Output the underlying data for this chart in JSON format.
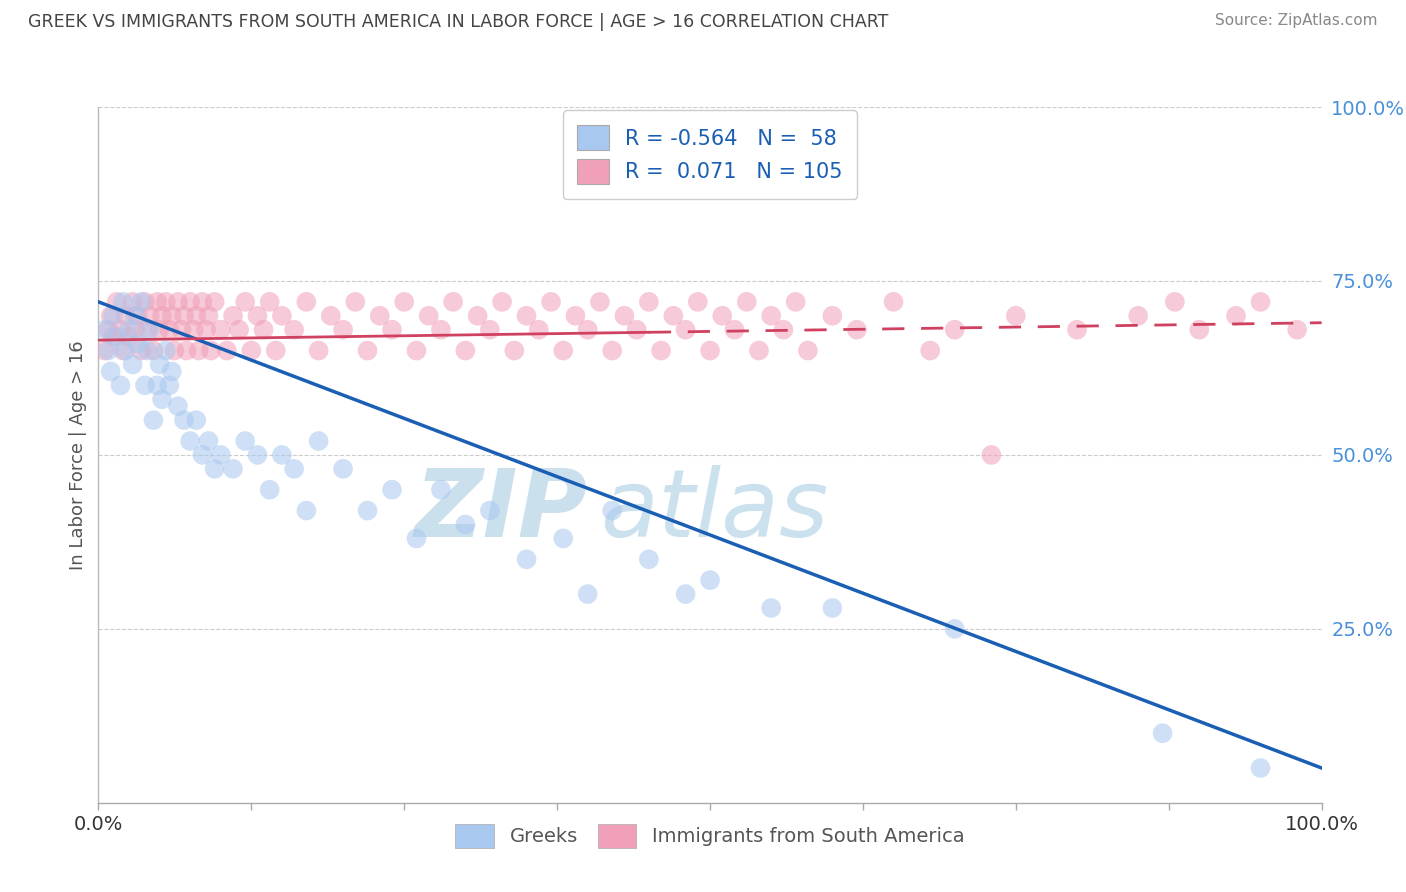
{
  "title": "GREEK VS IMMIGRANTS FROM SOUTH AMERICA IN LABOR FORCE | AGE > 16 CORRELATION CHART",
  "source": "Source: ZipAtlas.com",
  "ylabel": "In Labor Force | Age > 16",
  "watermark_zip": "ZIP",
  "watermark_atlas": "atlas",
  "legend_label_blue": "Greeks",
  "legend_label_pink": "Immigrants from South America",
  "R_blue": -0.564,
  "N_blue": 58,
  "R_pink": 0.071,
  "N_pink": 105,
  "blue_color": "#A8C8F0",
  "pink_color": "#F0A0B8",
  "blue_line_color": "#1A5FB4",
  "pink_line_color": "#D04060",
  "background_color": "#FFFFFF",
  "grid_color": "#DDDDDD",
  "title_color": "#444444",
  "right_axis_color": "#4A90D9",
  "xlim": [
    0.0,
    1.0
  ],
  "ylim": [
    0.0,
    1.0
  ],
  "blue_x": [
    0.005,
    0.008,
    0.01,
    0.012,
    0.015,
    0.018,
    0.02,
    0.022,
    0.025,
    0.028,
    0.03,
    0.032,
    0.035,
    0.038,
    0.04,
    0.042,
    0.045,
    0.048,
    0.05,
    0.052,
    0.055,
    0.058,
    0.06,
    0.065,
    0.07,
    0.075,
    0.08,
    0.085,
    0.09,
    0.095,
    0.1,
    0.11,
    0.12,
    0.13,
    0.14,
    0.15,
    0.16,
    0.17,
    0.18,
    0.2,
    0.22,
    0.24,
    0.26,
    0.28,
    0.3,
    0.32,
    0.35,
    0.38,
    0.4,
    0.42,
    0.45,
    0.48,
    0.5,
    0.55,
    0.6,
    0.7,
    0.87,
    0.95
  ],
  "blue_y": [
    0.68,
    0.65,
    0.62,
    0.7,
    0.67,
    0.6,
    0.72,
    0.65,
    0.68,
    0.63,
    0.7,
    0.66,
    0.72,
    0.6,
    0.65,
    0.68,
    0.55,
    0.6,
    0.63,
    0.58,
    0.65,
    0.6,
    0.62,
    0.57,
    0.55,
    0.52,
    0.55,
    0.5,
    0.52,
    0.48,
    0.5,
    0.48,
    0.52,
    0.5,
    0.45,
    0.5,
    0.48,
    0.42,
    0.52,
    0.48,
    0.42,
    0.45,
    0.38,
    0.45,
    0.4,
    0.42,
    0.35,
    0.38,
    0.3,
    0.42,
    0.35,
    0.3,
    0.32,
    0.28,
    0.28,
    0.25,
    0.1,
    0.05
  ],
  "pink_x": [
    0.005,
    0.008,
    0.01,
    0.012,
    0.015,
    0.018,
    0.02,
    0.022,
    0.025,
    0.028,
    0.03,
    0.032,
    0.035,
    0.038,
    0.04,
    0.042,
    0.045,
    0.048,
    0.05,
    0.052,
    0.055,
    0.058,
    0.06,
    0.062,
    0.065,
    0.068,
    0.07,
    0.072,
    0.075,
    0.078,
    0.08,
    0.082,
    0.085,
    0.088,
    0.09,
    0.092,
    0.095,
    0.1,
    0.105,
    0.11,
    0.115,
    0.12,
    0.125,
    0.13,
    0.135,
    0.14,
    0.145,
    0.15,
    0.16,
    0.17,
    0.18,
    0.19,
    0.2,
    0.21,
    0.22,
    0.23,
    0.24,
    0.25,
    0.26,
    0.27,
    0.28,
    0.29,
    0.3,
    0.31,
    0.32,
    0.33,
    0.34,
    0.35,
    0.36,
    0.37,
    0.38,
    0.39,
    0.4,
    0.41,
    0.42,
    0.43,
    0.44,
    0.45,
    0.46,
    0.47,
    0.48,
    0.49,
    0.5,
    0.51,
    0.52,
    0.53,
    0.54,
    0.55,
    0.56,
    0.57,
    0.58,
    0.6,
    0.62,
    0.65,
    0.68,
    0.7,
    0.73,
    0.75,
    0.8,
    0.85,
    0.88,
    0.9,
    0.93,
    0.95,
    0.98
  ],
  "pink_y": [
    0.65,
    0.68,
    0.7,
    0.67,
    0.72,
    0.68,
    0.65,
    0.7,
    0.67,
    0.72,
    0.68,
    0.7,
    0.65,
    0.72,
    0.68,
    0.7,
    0.65,
    0.72,
    0.68,
    0.7,
    0.72,
    0.68,
    0.7,
    0.65,
    0.72,
    0.68,
    0.7,
    0.65,
    0.72,
    0.68,
    0.7,
    0.65,
    0.72,
    0.68,
    0.7,
    0.65,
    0.72,
    0.68,
    0.65,
    0.7,
    0.68,
    0.72,
    0.65,
    0.7,
    0.68,
    0.72,
    0.65,
    0.7,
    0.68,
    0.72,
    0.65,
    0.7,
    0.68,
    0.72,
    0.65,
    0.7,
    0.68,
    0.72,
    0.65,
    0.7,
    0.68,
    0.72,
    0.65,
    0.7,
    0.68,
    0.72,
    0.65,
    0.7,
    0.68,
    0.72,
    0.65,
    0.7,
    0.68,
    0.72,
    0.65,
    0.7,
    0.68,
    0.72,
    0.65,
    0.7,
    0.68,
    0.72,
    0.65,
    0.7,
    0.68,
    0.72,
    0.65,
    0.7,
    0.68,
    0.72,
    0.65,
    0.7,
    0.68,
    0.72,
    0.65,
    0.68,
    0.5,
    0.7,
    0.68,
    0.7,
    0.72,
    0.68,
    0.7,
    0.72,
    0.68
  ],
  "blue_line_start_y": 0.72,
  "blue_line_end_y": 0.05,
  "pink_line_start_y": 0.665,
  "pink_line_end_y": 0.69
}
